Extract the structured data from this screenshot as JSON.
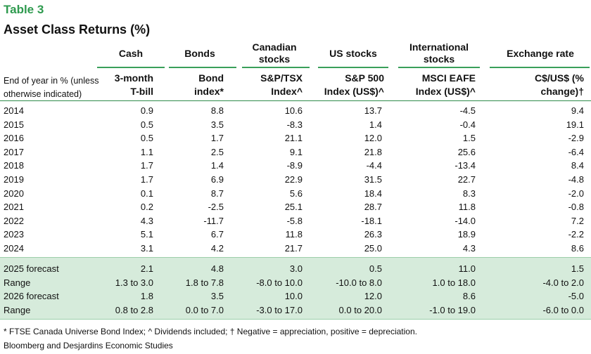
{
  "header": {
    "label": "Table 3",
    "title": "Asset Class Returns (%)"
  },
  "groups": [
    {
      "label": "Cash"
    },
    {
      "label": "Bonds"
    },
    {
      "label": "Canadian stocks"
    },
    {
      "label": "US stocks"
    },
    {
      "label": "International stocks"
    },
    {
      "label": "Exchange rate"
    }
  ],
  "row_header": "End of year in % (unless otherwise indicated)",
  "columns": [
    {
      "label": "3-month T-bill"
    },
    {
      "label": "Bond index*"
    },
    {
      "label": "S&P/TSX Index^"
    },
    {
      "label": "S&P 500 Index (US$)^"
    },
    {
      "label": "MSCI EAFE Index (US$)^"
    },
    {
      "label": "C$/US$ (% change)†"
    }
  ],
  "rows": [
    {
      "label": "2014",
      "values": [
        "0.9",
        "8.8",
        "10.6",
        "13.7",
        "-4.5",
        "9.4"
      ]
    },
    {
      "label": "2015",
      "values": [
        "0.5",
        "3.5",
        "-8.3",
        "1.4",
        "-0.4",
        "19.1"
      ]
    },
    {
      "label": "2016",
      "values": [
        "0.5",
        "1.7",
        "21.1",
        "12.0",
        "1.5",
        "-2.9"
      ]
    },
    {
      "label": "2017",
      "values": [
        "1.1",
        "2.5",
        "9.1",
        "21.8",
        "25.6",
        "-6.4"
      ]
    },
    {
      "label": "2018",
      "values": [
        "1.7",
        "1.4",
        "-8.9",
        "-4.4",
        "-13.4",
        "8.4"
      ]
    },
    {
      "label": "2019",
      "values": [
        "1.7",
        "6.9",
        "22.9",
        "31.5",
        "22.7",
        "-4.8"
      ]
    },
    {
      "label": "2020",
      "values": [
        "0.1",
        "8.7",
        "5.6",
        "18.4",
        "8.3",
        "-2.0"
      ]
    },
    {
      "label": "2021",
      "values": [
        "0.2",
        "-2.5",
        "25.1",
        "28.7",
        "11.8",
        "-0.8"
      ]
    },
    {
      "label": "2022",
      "values": [
        "4.3",
        "-11.7",
        "-5.8",
        "-18.1",
        "-14.0",
        "7.2"
      ]
    },
    {
      "label": "2023",
      "values": [
        "5.1",
        "6.7",
        "11.8",
        "26.3",
        "18.9",
        "-2.2"
      ]
    },
    {
      "label": "2024",
      "values": [
        "3.1",
        "4.2",
        "21.7",
        "25.0",
        "4.3",
        "8.6"
      ]
    }
  ],
  "forecast_rows": [
    {
      "label": "2025 forecast",
      "values": [
        "2.1",
        "4.8",
        "3.0",
        "0.5",
        "11.0",
        "1.5"
      ]
    },
    {
      "label": "Range",
      "values": [
        "1.3 to 3.0",
        "1.8 to 7.8",
        "-8.0 to 10.0",
        "-10.0 to 8.0",
        "1.0 to 18.0",
        "-4.0 to 2.0"
      ]
    },
    {
      "label": "2026 forecast",
      "values": [
        "1.8",
        "3.5",
        "10.0",
        "12.0",
        "8.6",
        "-5.0"
      ]
    },
    {
      "label": "Range",
      "values": [
        "0.8 to 2.8",
        "0.0 to 7.0",
        "-3.0 to 17.0",
        "0.0 to 20.0",
        "-1.0 to 19.0",
        "-6.0 to 0.0"
      ]
    }
  ],
  "footnotes": {
    "note": "* FTSE Canada Universe Bond Index; ^ Dividends included; † Negative = appreciation, positive = depreciation.",
    "source": "Bloomberg and Desjardins Economic Studies"
  },
  "colors": {
    "accent": "#2e9a4e",
    "forecast_band": "#d6ebdb"
  }
}
